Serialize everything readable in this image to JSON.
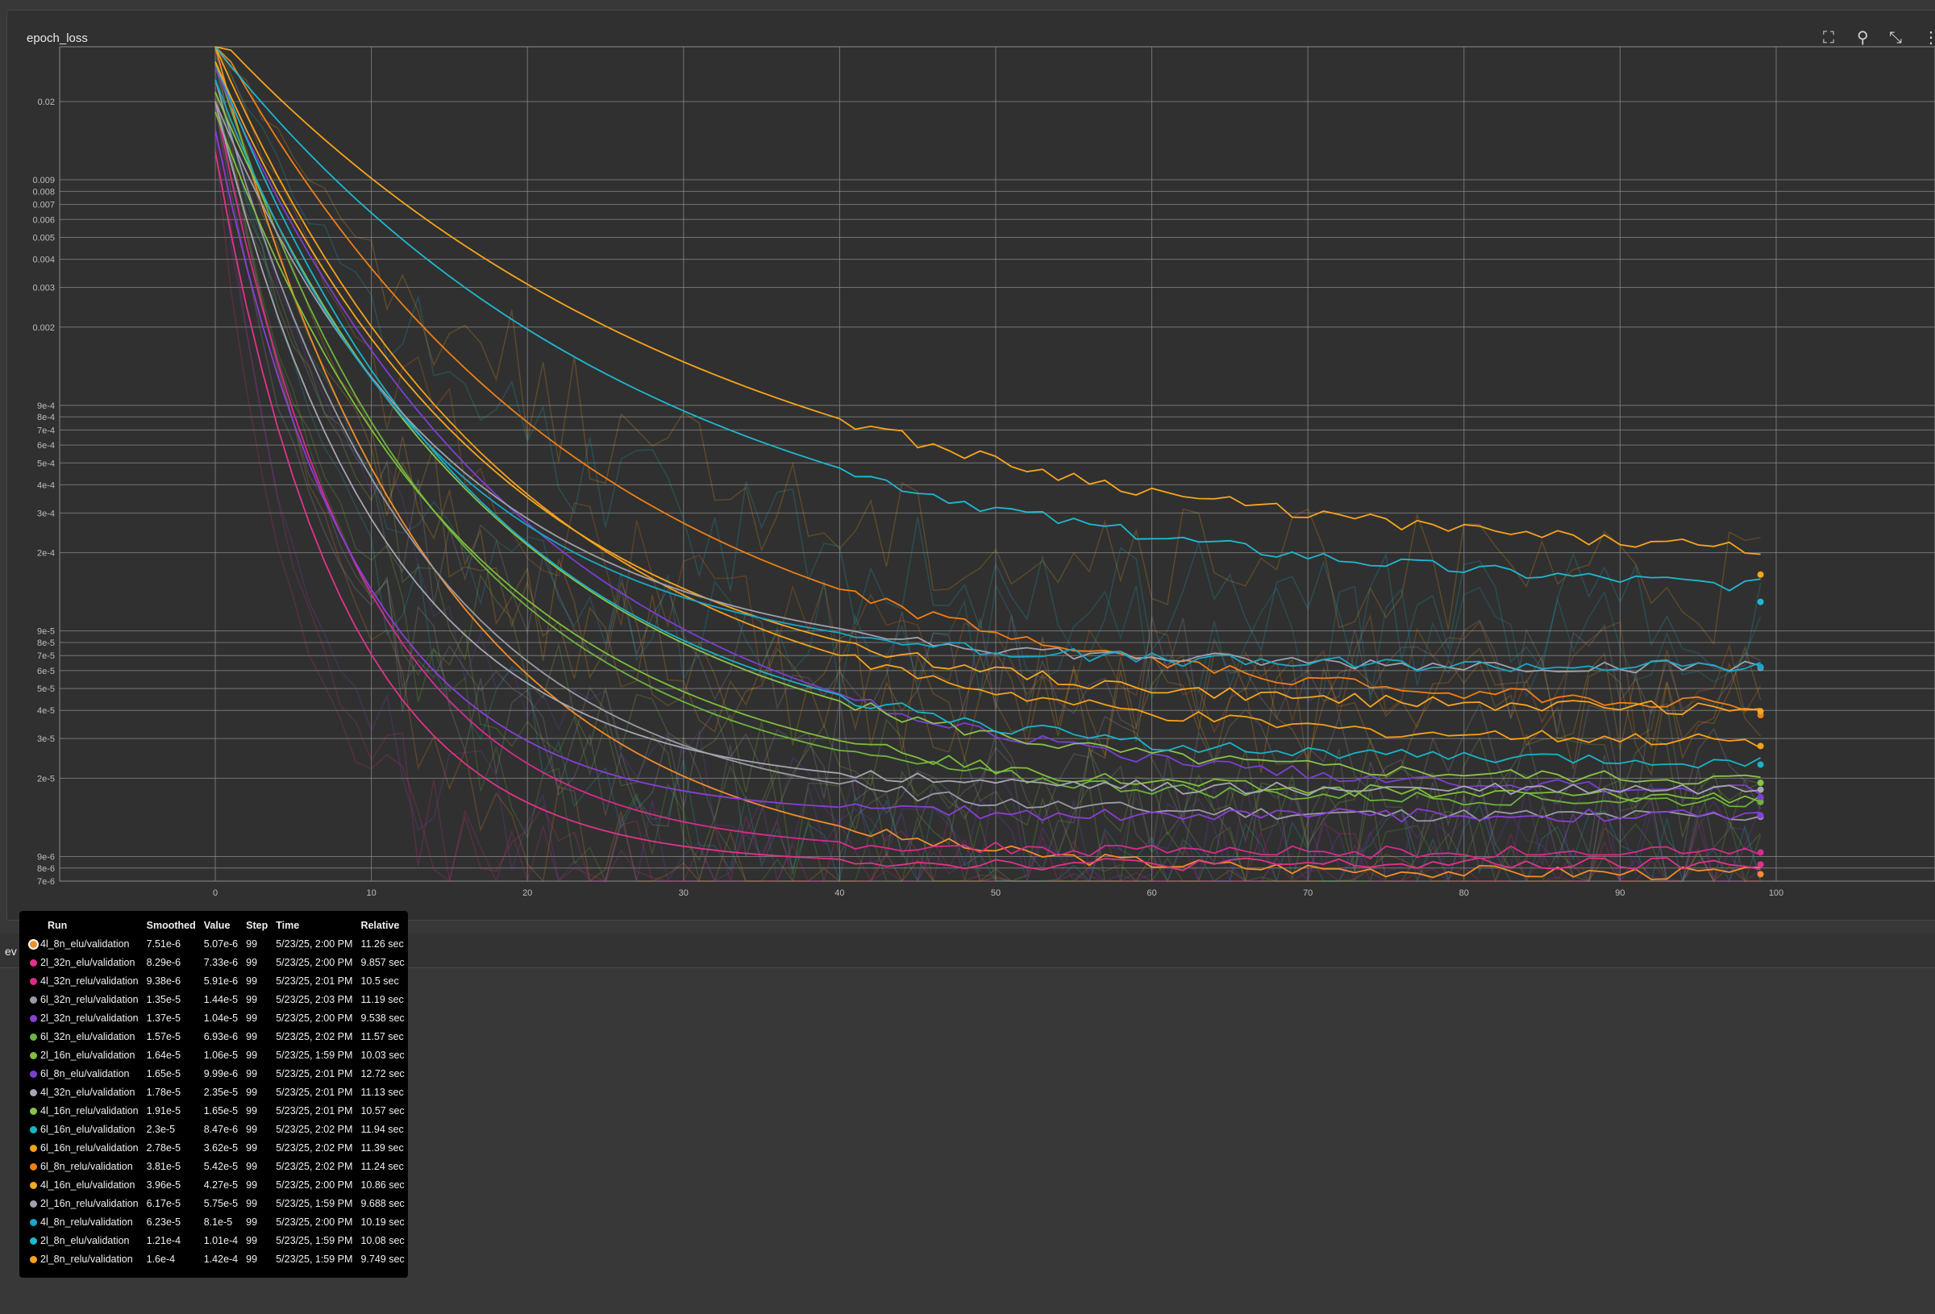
{
  "card": {
    "title": "epoch_loss",
    "lower_label": "ev"
  },
  "toolbar": {
    "fit_icon": "fit-domain-icon",
    "pin_icon": "pin-icon",
    "collapse_icon": "collapse-icon",
    "more_icon": "more-vert-icon"
  },
  "chart_data": {
    "type": "line",
    "title": "epoch_loss",
    "xlabel": "",
    "ylabel": "",
    "xlim": [
      -20,
      110
    ],
    "ylim_log": [
      7e-06,
      0.035
    ],
    "y_scale": "log",
    "grid": true,
    "x_ticks": [
      0,
      10,
      20,
      30,
      40,
      50,
      60,
      70,
      80,
      90,
      100
    ],
    "y_ticks": [
      {
        "v": 0.02,
        "l": "0.02"
      },
      {
        "v": 0.009,
        "l": "0.009"
      },
      {
        "v": 0.008,
        "l": "0.008"
      },
      {
        "v": 0.007,
        "l": "0.007"
      },
      {
        "v": 0.006,
        "l": "0.006"
      },
      {
        "v": 0.005,
        "l": "0.005"
      },
      {
        "v": 0.004,
        "l": "0.004"
      },
      {
        "v": 0.003,
        "l": "0.003"
      },
      {
        "v": 0.002,
        "l": "0.002"
      },
      {
        "v": 0.0009,
        "l": "9e-4"
      },
      {
        "v": 0.0008,
        "l": "8e-4"
      },
      {
        "v": 0.0007,
        "l": "7e-4"
      },
      {
        "v": 0.0006,
        "l": "6e-4"
      },
      {
        "v": 0.0005,
        "l": "5e-4"
      },
      {
        "v": 0.0004,
        "l": "4e-4"
      },
      {
        "v": 0.0003,
        "l": "3e-4"
      },
      {
        "v": 0.0002,
        "l": "2e-4"
      },
      {
        "v": 9e-05,
        "l": "9e-5"
      },
      {
        "v": 8e-05,
        "l": "8e-5"
      },
      {
        "v": 7e-05,
        "l": "7e-5"
      },
      {
        "v": 6e-05,
        "l": "6e-5"
      },
      {
        "v": 5e-05,
        "l": "5e-5"
      },
      {
        "v": 4e-05,
        "l": "4e-5"
      },
      {
        "v": 3e-05,
        "l": "3e-5"
      },
      {
        "v": 2e-05,
        "l": "2e-5"
      },
      {
        "v": 9e-06,
        "l": "9e-6"
      },
      {
        "v": 8e-06,
        "l": "8e-6"
      },
      {
        "v": 7e-06,
        "l": "7e-6"
      }
    ],
    "series": [
      {
        "name": "4l_8n_elu/validation",
        "color": "#f28e2b",
        "start": 0.035,
        "end": 7.51e-06,
        "k": 3.2,
        "raw_end": 5.07e-06
      },
      {
        "name": "2l_32n_elu/validation",
        "color": "#e0338a",
        "start": 0.012,
        "end": 8.29e-06,
        "k": 5.5,
        "raw_end": 7.33e-06
      },
      {
        "name": "4l_32n_relu/validation",
        "color": "#d62c8c",
        "start": 0.02,
        "end": 9.38e-06,
        "k": 4.8,
        "raw_end": 5.91e-06
      },
      {
        "name": "6l_32n_relu/validation",
        "color": "#9a9aa6",
        "start": 0.025,
        "end": 1.35e-05,
        "k": 3.5,
        "raw_end": 1.44e-05
      },
      {
        "name": "2l_32n_relu/validation",
        "color": "#8a3ed6",
        "start": 0.015,
        "end": 1.37e-05,
        "k": 5.0,
        "raw_end": 1.04e-05
      },
      {
        "name": "6l_32n_elu/validation",
        "color": "#6db33f",
        "start": 0.03,
        "end": 1.57e-05,
        "k": 3.0,
        "raw_end": 6.93e-06
      },
      {
        "name": "2l_16n_elu/validation",
        "color": "#7fbf3b",
        "start": 0.018,
        "end": 1.64e-05,
        "k": 2.8,
        "raw_end": 1.06e-05
      },
      {
        "name": "6l_8n_elu/validation",
        "color": "#7b3fd1",
        "start": 0.028,
        "end": 1.65e-05,
        "k": 2.2,
        "raw_end": 9.99e-06
      },
      {
        "name": "4l_32n_elu/validation",
        "color": "#a6a6b3",
        "start": 0.02,
        "end": 1.78e-05,
        "k": 4.2,
        "raw_end": 2.35e-05
      },
      {
        "name": "4l_16n_relu/validation",
        "color": "#8bc34a",
        "start": 0.022,
        "end": 1.91e-05,
        "k": 2.4,
        "raw_end": 1.65e-05
      },
      {
        "name": "6l_16n_elu/validation",
        "color": "#18b4c9",
        "start": 0.03,
        "end": 2.3e-05,
        "k": 2.6,
        "raw_end": 8.47e-06
      },
      {
        "name": "6l_16n_relu/validation",
        "color": "#f6a11a",
        "start": 0.035,
        "end": 2.78e-05,
        "k": 2.3,
        "raw_end": 3.62e-05
      },
      {
        "name": "6l_8n_relu/validation",
        "color": "#f07f16",
        "start": 0.04,
        "end": 3.81e-05,
        "k": 1.9,
        "raw_end": 5.42e-05
      },
      {
        "name": "4l_16n_elu/validation",
        "color": "#f5a623",
        "start": 0.03,
        "end": 3.96e-05,
        "k": 2.5,
        "raw_end": 4.27e-05
      },
      {
        "name": "2l_16n_relu/validation",
        "color": "#a0a0ac",
        "start": 0.02,
        "end": 6.17e-05,
        "k": 3.0,
        "raw_end": 5.75e-05
      },
      {
        "name": "4l_8n_relu/validation",
        "color": "#1aa7c7",
        "start": 0.025,
        "end": 6.23e-05,
        "k": 3.2,
        "raw_end": 8.1e-05
      },
      {
        "name": "2l_8n_elu/validation",
        "color": "#1fb8d1",
        "start": 0.035,
        "end": 0.000121,
        "k": 1.6,
        "raw_end": 0.000101
      },
      {
        "name": "2l_8n_relu/validation",
        "color": "#f8a51b",
        "start": 0.04,
        "end": 0.00016,
        "k": 1.4,
        "raw_end": 0.000142
      }
    ]
  },
  "tooltip": {
    "headers": [
      "Run",
      "Smoothed",
      "Value",
      "Step",
      "Time",
      "Relative"
    ],
    "rows": [
      [
        "4l_8n_elu/validation",
        "7.51e-6",
        "5.07e-6",
        "99",
        "5/23/25, 2:00 PM",
        "11.26 sec"
      ],
      [
        "2l_32n_elu/validation",
        "8.29e-6",
        "7.33e-6",
        "99",
        "5/23/25, 2:00 PM",
        "9.857 sec"
      ],
      [
        "4l_32n_relu/validation",
        "9.38e-6",
        "5.91e-6",
        "99",
        "5/23/25, 2:01 PM",
        "10.5 sec"
      ],
      [
        "6l_32n_relu/validation",
        "1.35e-5",
        "1.44e-5",
        "99",
        "5/23/25, 2:03 PM",
        "11.19 sec"
      ],
      [
        "2l_32n_relu/validation",
        "1.37e-5",
        "1.04e-5",
        "99",
        "5/23/25, 2:00 PM",
        "9.538 sec"
      ],
      [
        "6l_32n_elu/validation",
        "1.57e-5",
        "6.93e-6",
        "99",
        "5/23/25, 2:02 PM",
        "11.57 sec"
      ],
      [
        "2l_16n_elu/validation",
        "1.64e-5",
        "1.06e-5",
        "99",
        "5/23/25, 1:59 PM",
        "10.03 sec"
      ],
      [
        "6l_8n_elu/validation",
        "1.65e-5",
        "9.99e-6",
        "99",
        "5/23/25, 2:01 PM",
        "12.72 sec"
      ],
      [
        "4l_32n_elu/validation",
        "1.78e-5",
        "2.35e-5",
        "99",
        "5/23/25, 2:01 PM",
        "11.13 sec"
      ],
      [
        "4l_16n_relu/validation",
        "1.91e-5",
        "1.65e-5",
        "99",
        "5/23/25, 2:01 PM",
        "10.57 sec"
      ],
      [
        "6l_16n_elu/validation",
        "2.3e-5",
        "8.47e-6",
        "99",
        "5/23/25, 2:02 PM",
        "11.94 sec"
      ],
      [
        "6l_16n_relu/validation",
        "2.78e-5",
        "3.62e-5",
        "99",
        "5/23/25, 2:02 PM",
        "11.39 sec"
      ],
      [
        "6l_8n_relu/validation",
        "3.81e-5",
        "5.42e-5",
        "99",
        "5/23/25, 2:02 PM",
        "11.24 sec"
      ],
      [
        "4l_16n_elu/validation",
        "3.96e-5",
        "4.27e-5",
        "99",
        "5/23/25, 2:00 PM",
        "10.86 sec"
      ],
      [
        "2l_16n_relu/validation",
        "6.17e-5",
        "5.75e-5",
        "99",
        "5/23/25, 1:59 PM",
        "9.688 sec"
      ],
      [
        "4l_8n_relu/validation",
        "6.23e-5",
        "8.1e-5",
        "99",
        "5/23/25, 2:00 PM",
        "10.19 sec"
      ],
      [
        "2l_8n_elu/validation",
        "1.21e-4",
        "1.01e-4",
        "99",
        "5/23/25, 1:59 PM",
        "10.08 sec"
      ],
      [
        "2l_8n_relu/validation",
        "1.6e-4",
        "1.42e-4",
        "99",
        "5/23/25, 1:59 PM",
        "9.749 sec"
      ]
    ]
  }
}
